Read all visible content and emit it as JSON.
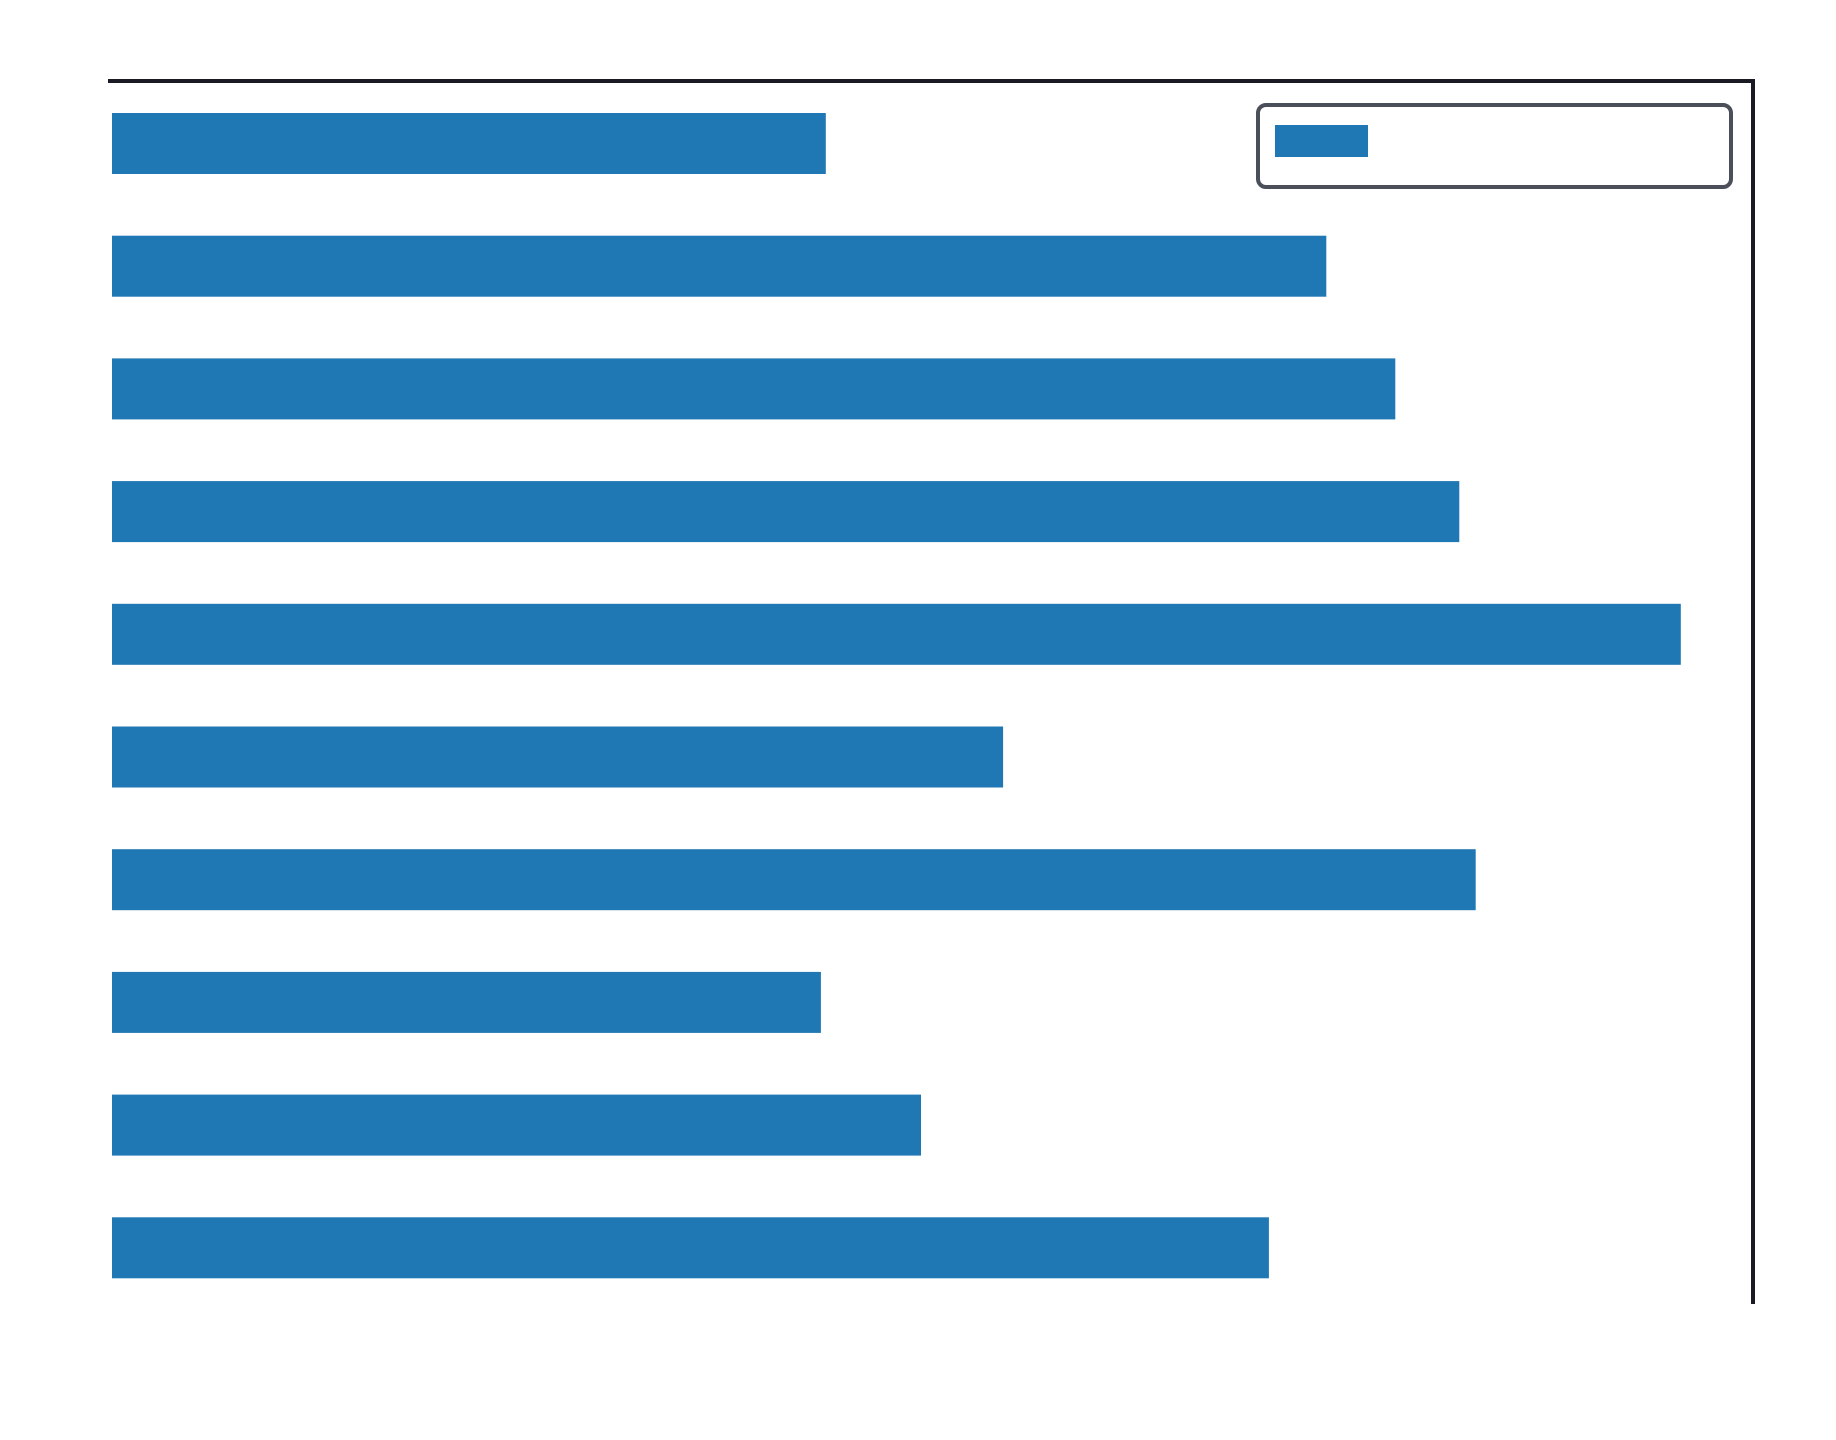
{
  "colors": {
    "bar": "#1f77b4",
    "axis": "#1a1a24",
    "legend_border": "#4a4f5a"
  },
  "chart_data": {
    "type": "bar",
    "orientation": "horizontal",
    "xlim": [
      0,
      100
    ],
    "values": [
      43.5,
      74.0,
      78.2,
      82.1,
      95.6,
      54.3,
      83.1,
      43.2,
      49.3,
      70.5
    ],
    "series": [
      {
        "values": [
          43.5,
          74.0,
          78.2,
          82.1,
          95.6,
          54.3,
          83.1,
          43.2,
          49.3,
          70.5
        ]
      }
    ],
    "grid": false,
    "legend_position": "top-right"
  }
}
